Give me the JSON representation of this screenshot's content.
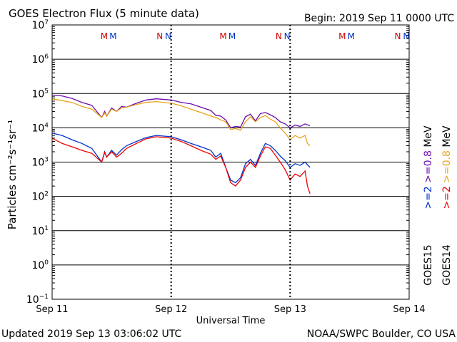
{
  "chart_data": {
    "type": "line",
    "title": "GOES Electron Flux (5 minute data)",
    "begin_label": "Begin: 2019 Sep 11 0000 UTC",
    "xlabel": "Universal Time",
    "ylabel": "Particles cm⁻²s⁻¹sr⁻¹",
    "updated_label": "Updated 2019 Sep 13 03:06:02 UTC",
    "credit_label": "NOAA/SWPC Boulder, CO USA",
    "y_scale": "log",
    "ylim_exponents": [
      -1,
      7
    ],
    "y_tick_base": "10",
    "y_tick_exponents": [
      "7",
      "6",
      "5",
      "4",
      "3",
      "2",
      "1",
      "0",
      "−1"
    ],
    "xlim_hours": [
      0,
      72
    ],
    "x_ticks": [
      {
        "label": "Sep 11",
        "hour": 0
      },
      {
        "label": "Sep 12",
        "hour": 24
      },
      {
        "label": "Sep 13",
        "hour": 48
      },
      {
        "label": "Sep 14",
        "hour": 72
      }
    ],
    "threshold": {
      "value": 1000,
      "style": "dashed"
    },
    "markers": [
      {
        "text": "M",
        "hour": 10.5,
        "color": "#cc0000"
      },
      {
        "text": "M",
        "hour": 12.3,
        "color": "#0033cc"
      },
      {
        "text": "N",
        "hour": 21.7,
        "color": "#cc0000"
      },
      {
        "text": "N",
        "hour": 23.4,
        "color": "#0033cc"
      },
      {
        "text": "M",
        "hour": 34.5,
        "color": "#cc0000"
      },
      {
        "text": "M",
        "hour": 36.3,
        "color": "#0033cc"
      },
      {
        "text": "N",
        "hour": 45.7,
        "color": "#cc0000"
      },
      {
        "text": "N",
        "hour": 47.4,
        "color": "#0033cc"
      },
      {
        "text": "M",
        "hour": 58.5,
        "color": "#cc0000"
      },
      {
        "text": "M",
        "hour": 60.3,
        "color": "#0033cc"
      },
      {
        "text": "N",
        "hour": 69.7,
        "color": "#cc0000"
      },
      {
        "text": "N",
        "hour": 71.4,
        "color": "#0033cc"
      }
    ],
    "legend_columns": [
      {
        "satellite": "GOES15",
        "entries": [
          {
            "label": ">=2",
            "color": "#0033cc"
          },
          {
            "label": ">=0.8",
            "color": "#6a0dad"
          },
          {
            "label": "MeV",
            "color": "#000000"
          }
        ]
      },
      {
        "satellite": "GOES14",
        "entries": [
          {
            "label": ">=2",
            "color": "#ee0000"
          },
          {
            "label": ">=0.8",
            "color": "#e8a317"
          },
          {
            "label": "MeV",
            "color": "#000000"
          }
        ]
      }
    ],
    "series": [
      {
        "color": "#6a0dad",
        "hours": [
          0,
          2,
          4,
          6,
          8,
          10,
          10.6,
          11,
          12,
          13,
          14,
          15,
          17,
          19,
          21,
          24,
          26,
          28,
          30,
          32,
          33,
          34,
          35,
          36,
          37,
          38,
          39,
          40,
          41,
          42,
          43,
          44,
          45,
          46,
          47,
          48,
          49,
          50,
          51,
          52
        ],
        "values": [
          90000,
          85000,
          72000,
          55000,
          45000,
          20000,
          30000,
          22000,
          38000,
          30000,
          42000,
          40000,
          52000,
          65000,
          70000,
          65000,
          55000,
          50000,
          40000,
          32000,
          23000,
          22000,
          17000,
          10000,
          11000,
          10500,
          21000,
          25000,
          16000,
          26000,
          28000,
          24000,
          20000,
          15000,
          13000,
          10000,
          12000,
          11000,
          13000,
          11500
        ]
      },
      {
        "color": "#e8a317",
        "hours": [
          0,
          2,
          4,
          6,
          8,
          10,
          10.6,
          11,
          12,
          13,
          14,
          15,
          17,
          19,
          21,
          24,
          26,
          28,
          30,
          32,
          33,
          34,
          35,
          36,
          37,
          38,
          39,
          40,
          41,
          42,
          43,
          44,
          45,
          46,
          47,
          48,
          49,
          50,
          51,
          51.5,
          52
        ],
        "values": [
          70000,
          62000,
          55000,
          42000,
          35000,
          20000,
          27000,
          22000,
          35000,
          30000,
          38000,
          40000,
          48000,
          55000,
          58000,
          52000,
          44000,
          35000,
          28000,
          22000,
          20000,
          17000,
          15000,
          9000,
          9500,
          8500,
          15000,
          21000,
          15000,
          20000,
          23000,
          18000,
          15000,
          10000,
          7000,
          4500,
          6000,
          5000,
          6000,
          3500,
          3000
        ]
      },
      {
        "color": "#0033cc",
        "hours": [
          0,
          2,
          4,
          6,
          8,
          10,
          10.6,
          11,
          12,
          13,
          14,
          15,
          17,
          19,
          21,
          24,
          26,
          28,
          30,
          32,
          33,
          34,
          35,
          36,
          37,
          38,
          39,
          40,
          41,
          42,
          43,
          44,
          45,
          46,
          47,
          48,
          49,
          50,
          51,
          52
        ],
        "values": [
          7000,
          6000,
          4500,
          3500,
          2500,
          1000,
          2000,
          1400,
          2200,
          1600,
          2300,
          3000,
          4000,
          5200,
          6000,
          5500,
          4500,
          3500,
          2800,
          2200,
          1400,
          1800,
          700,
          300,
          250,
          350,
          900,
          1200,
          800,
          1800,
          3500,
          3000,
          2200,
          1500,
          1100,
          700,
          900,
          800,
          1000,
          700
        ]
      },
      {
        "color": "#ee0000",
        "hours": [
          0,
          2,
          4,
          6,
          8,
          10,
          10.6,
          11,
          12,
          13,
          14,
          15,
          17,
          19,
          21,
          24,
          26,
          28,
          30,
          32,
          33,
          34,
          35,
          36,
          37,
          38,
          39,
          40,
          41,
          42,
          43,
          44,
          45,
          46,
          47,
          48,
          49,
          50,
          51,
          51.5,
          52
        ],
        "values": [
          5000,
          3500,
          2800,
          2200,
          1800,
          1000,
          1900,
          1400,
          2000,
          1400,
          1800,
          2500,
          3500,
          4800,
          5500,
          5000,
          4000,
          3000,
          2200,
          1700,
          1200,
          1500,
          700,
          250,
          200,
          300,
          700,
          1000,
          700,
          1500,
          2800,
          2500,
          1600,
          1000,
          600,
          300,
          450,
          380,
          550,
          200,
          120
        ]
      }
    ]
  }
}
